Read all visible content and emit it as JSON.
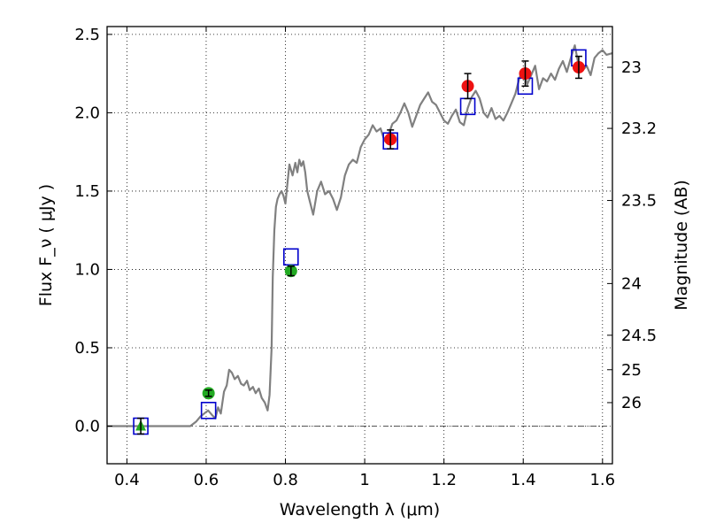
{
  "chart_data": {
    "type": "scatter",
    "title": "",
    "xlabel": "Wavelength  λ (μm)",
    "ylabel": "Flux  F_ν  ( μJy )",
    "y2label": "Magnitude (AB)",
    "xlim": [
      0.35,
      1.625
    ],
    "ylim": [
      -0.24,
      2.55
    ],
    "grid": true,
    "x_ticks": [
      0.4,
      0.6,
      0.8,
      1.0,
      1.2,
      1.4,
      1.6
    ],
    "x_tick_labels": [
      "0.4",
      "0.6",
      "0.8",
      "1",
      "1.2",
      "1.4",
      "1.6"
    ],
    "y_ticks": [
      0.0,
      0.5,
      1.0,
      1.5,
      2.0,
      2.5
    ],
    "y_tick_labels": [
      "0.0",
      "0.5",
      "1.0",
      "1.5",
      "2.0",
      "2.5"
    ],
    "y2_ticks": [
      {
        "label": "23",
        "flux": 2.29
      },
      {
        "label": "23.2",
        "flux": 1.9
      },
      {
        "label": "23.5",
        "flux": 1.44
      },
      {
        "label": "24",
        "flux": 0.91
      },
      {
        "label": "24.5",
        "flux": 0.58
      },
      {
        "label": "25",
        "flux": 0.36
      },
      {
        "label": "26",
        "flux": 0.15
      }
    ],
    "zero_line": 0.0,
    "series": [
      {
        "kind": "model-spectrum",
        "color": "#808080",
        "x": [
          0.35,
          0.56,
          0.575,
          0.585,
          0.595,
          0.605,
          0.615,
          0.623,
          0.63,
          0.637,
          0.645,
          0.652,
          0.658,
          0.665,
          0.672,
          0.68,
          0.688,
          0.695,
          0.703,
          0.71,
          0.718,
          0.725,
          0.733,
          0.74,
          0.748,
          0.755,
          0.76,
          0.765,
          0.768,
          0.772,
          0.776,
          0.78,
          0.785,
          0.79,
          0.795,
          0.8,
          0.805,
          0.81,
          0.818,
          0.825,
          0.83,
          0.835,
          0.84,
          0.845,
          0.85,
          0.855,
          0.86,
          0.87,
          0.88,
          0.89,
          0.9,
          0.91,
          0.92,
          0.93,
          0.94,
          0.95,
          0.96,
          0.97,
          0.98,
          0.99,
          1.0,
          1.01,
          1.02,
          1.03,
          1.04,
          1.05,
          1.06,
          1.07,
          1.08,
          1.09,
          1.1,
          1.11,
          1.12,
          1.13,
          1.14,
          1.15,
          1.16,
          1.17,
          1.18,
          1.19,
          1.2,
          1.21,
          1.22,
          1.23,
          1.24,
          1.25,
          1.26,
          1.27,
          1.28,
          1.29,
          1.3,
          1.31,
          1.32,
          1.33,
          1.34,
          1.35,
          1.36,
          1.37,
          1.38,
          1.39,
          1.4,
          1.41,
          1.42,
          1.43,
          1.44,
          1.45,
          1.46,
          1.47,
          1.48,
          1.49,
          1.5,
          1.51,
          1.52,
          1.53,
          1.54,
          1.55,
          1.56,
          1.57,
          1.58,
          1.59,
          1.6,
          1.61,
          1.625
        ],
        "y": [
          0.0,
          0.0,
          0.03,
          0.06,
          0.08,
          0.1,
          0.07,
          0.05,
          0.12,
          0.08,
          0.22,
          0.26,
          0.36,
          0.34,
          0.3,
          0.32,
          0.27,
          0.26,
          0.29,
          0.23,
          0.25,
          0.21,
          0.24,
          0.18,
          0.15,
          0.1,
          0.2,
          0.5,
          0.95,
          1.25,
          1.4,
          1.45,
          1.48,
          1.5,
          1.47,
          1.42,
          1.55,
          1.67,
          1.6,
          1.68,
          1.62,
          1.7,
          1.66,
          1.69,
          1.62,
          1.5,
          1.45,
          1.35,
          1.5,
          1.56,
          1.48,
          1.5,
          1.45,
          1.38,
          1.46,
          1.6,
          1.67,
          1.7,
          1.68,
          1.78,
          1.83,
          1.86,
          1.92,
          1.88,
          1.9,
          1.82,
          1.86,
          1.93,
          1.95,
          2.0,
          2.06,
          2.0,
          1.91,
          1.98,
          2.05,
          2.09,
          2.13,
          2.07,
          2.05,
          2.0,
          1.95,
          1.93,
          1.98,
          2.02,
          1.94,
          1.92,
          2.03,
          2.1,
          2.14,
          2.09,
          2.0,
          1.97,
          2.03,
          1.96,
          1.98,
          1.95,
          2.0,
          2.06,
          2.12,
          2.22,
          2.28,
          2.18,
          2.24,
          2.3,
          2.15,
          2.22,
          2.2,
          2.25,
          2.21,
          2.28,
          2.33,
          2.26,
          2.35,
          2.43,
          2.3,
          2.27,
          2.3,
          2.24,
          2.35,
          2.38,
          2.4,
          2.37,
          2.38
        ]
      },
      {
        "kind": "model-photometry",
        "marker": "open-square",
        "color": "#0000cc",
        "x": [
          0.435,
          0.606,
          0.814,
          1.065,
          1.26,
          1.405,
          1.54
        ],
        "y": [
          0.0,
          0.1,
          1.08,
          1.82,
          2.04,
          2.17,
          2.35
        ]
      },
      {
        "kind": "observed-optical",
        "marker": "filled-circle",
        "color": "#22aa22",
        "x": [
          0.606,
          0.814
        ],
        "y": [
          0.21,
          0.99
        ],
        "err": [
          0.02,
          0.03
        ]
      },
      {
        "kind": "observed-upper-limit",
        "marker": "filled-triangle",
        "color": "#22aa22",
        "x": [
          0.435
        ],
        "y": [
          0.0
        ],
        "err": [
          0.05
        ]
      },
      {
        "kind": "observed-nir",
        "marker": "filled-circle",
        "color": "#ee1111",
        "x": [
          1.065,
          1.26,
          1.405,
          1.54
        ],
        "y": [
          1.83,
          2.17,
          2.25,
          2.29
        ],
        "err": [
          0.06,
          0.08,
          0.08,
          0.07
        ]
      }
    ]
  }
}
